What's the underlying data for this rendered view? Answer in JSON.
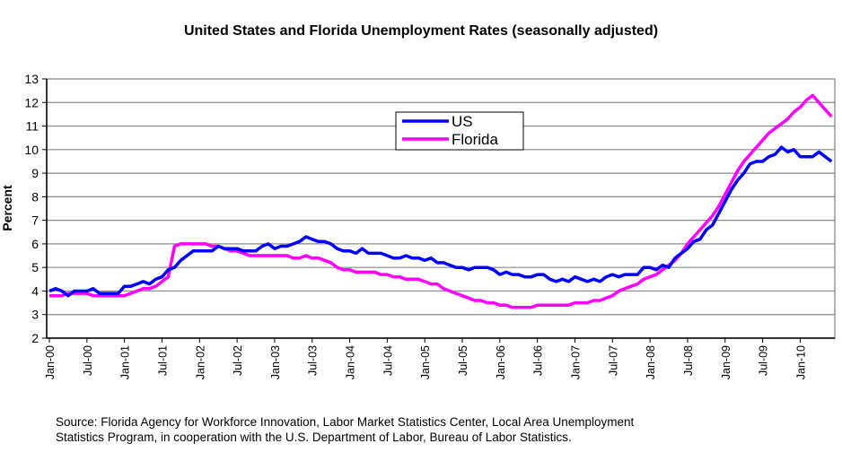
{
  "chart_data": {
    "type": "line",
    "title": "United States and Florida Unemployment Rates (seasonally adjusted)",
    "ylabel": "Percent",
    "xlabel": "",
    "ylim": [
      2,
      13
    ],
    "yticks": [
      2,
      3,
      4,
      5,
      6,
      7,
      8,
      9,
      10,
      11,
      12,
      13
    ],
    "grid": true,
    "legend_position": "top-center",
    "x_start": "Jan-00",
    "x_tick_labels": [
      "Jan-00",
      "Jul-00",
      "Jan-01",
      "Jul-01",
      "Jan-02",
      "Jul-02",
      "Jan-03",
      "Jul-03",
      "Jan-04",
      "Jul-04",
      "Jan-05",
      "Jul-05",
      "Jan-06",
      "Jul-06",
      "Jan-07",
      "Jul-07",
      "Jan-08",
      "Jul-08",
      "Jan-09",
      "Jul-09",
      "Jan-10"
    ],
    "series": [
      {
        "name": "US",
        "color": "#0000FF",
        "values": [
          4.0,
          4.1,
          4.0,
          3.8,
          4.0,
          4.0,
          4.0,
          4.1,
          3.9,
          3.9,
          3.9,
          3.9,
          4.2,
          4.2,
          4.3,
          4.4,
          4.3,
          4.5,
          4.6,
          4.9,
          5.0,
          5.3,
          5.5,
          5.7,
          5.7,
          5.7,
          5.7,
          5.9,
          5.8,
          5.8,
          5.8,
          5.7,
          5.7,
          5.7,
          5.9,
          6.0,
          5.8,
          5.9,
          5.9,
          6.0,
          6.1,
          6.3,
          6.2,
          6.1,
          6.1,
          6.0,
          5.8,
          5.7,
          5.7,
          5.6,
          5.8,
          5.6,
          5.6,
          5.6,
          5.5,
          5.4,
          5.4,
          5.5,
          5.4,
          5.4,
          5.3,
          5.4,
          5.2,
          5.2,
          5.1,
          5.0,
          5.0,
          4.9,
          5.0,
          5.0,
          5.0,
          4.9,
          4.7,
          4.8,
          4.7,
          4.7,
          4.6,
          4.6,
          4.7,
          4.7,
          4.5,
          4.4,
          4.5,
          4.4,
          4.6,
          4.5,
          4.4,
          4.5,
          4.4,
          4.6,
          4.7,
          4.6,
          4.7,
          4.7,
          4.7,
          5.0,
          5.0,
          4.9,
          5.1,
          5.0,
          5.4,
          5.6,
          5.8,
          6.1,
          6.2,
          6.6,
          6.8,
          7.3,
          7.8,
          8.3,
          8.7,
          9.0,
          9.4,
          9.5,
          9.5,
          9.7,
          9.8,
          10.1,
          9.9,
          10.0,
          9.7,
          9.7,
          9.7,
          9.9,
          9.7,
          9.5
        ]
      },
      {
        "name": "Florida",
        "color": "#FF00FF",
        "values": [
          3.8,
          3.8,
          3.8,
          3.9,
          3.9,
          3.9,
          3.9,
          3.8,
          3.8,
          3.8,
          3.8,
          3.8,
          3.8,
          3.9,
          4.0,
          4.1,
          4.1,
          4.2,
          4.4,
          4.6,
          5.9,
          6.0,
          6.0,
          6.0,
          6.0,
          6.0,
          5.9,
          5.9,
          5.8,
          5.7,
          5.7,
          5.6,
          5.5,
          5.5,
          5.5,
          5.5,
          5.5,
          5.5,
          5.5,
          5.4,
          5.4,
          5.5,
          5.4,
          5.4,
          5.3,
          5.2,
          5.0,
          4.9,
          4.9,
          4.8,
          4.8,
          4.8,
          4.8,
          4.7,
          4.7,
          4.6,
          4.6,
          4.5,
          4.5,
          4.5,
          4.4,
          4.3,
          4.3,
          4.1,
          4.0,
          3.9,
          3.8,
          3.7,
          3.6,
          3.6,
          3.5,
          3.5,
          3.4,
          3.4,
          3.3,
          3.3,
          3.3,
          3.3,
          3.4,
          3.4,
          3.4,
          3.4,
          3.4,
          3.4,
          3.5,
          3.5,
          3.5,
          3.6,
          3.6,
          3.7,
          3.8,
          4.0,
          4.1,
          4.2,
          4.3,
          4.5,
          4.6,
          4.7,
          4.9,
          5.1,
          5.3,
          5.6,
          6.0,
          6.3,
          6.6,
          6.9,
          7.2,
          7.6,
          8.1,
          8.6,
          9.1,
          9.5,
          9.8,
          10.1,
          10.4,
          10.7,
          10.9,
          11.1,
          11.3,
          11.6,
          11.8,
          12.1,
          12.3,
          12.0,
          11.7,
          11.4
        ]
      }
    ],
    "source_lines": [
      "Source:  Florida Agency for Workforce Innovation, Labor Market Statistics Center, Local Area Unemployment",
      "Statistics Program, in cooperation with the U.S. Department of Labor, Bureau of Labor Statistics."
    ]
  }
}
